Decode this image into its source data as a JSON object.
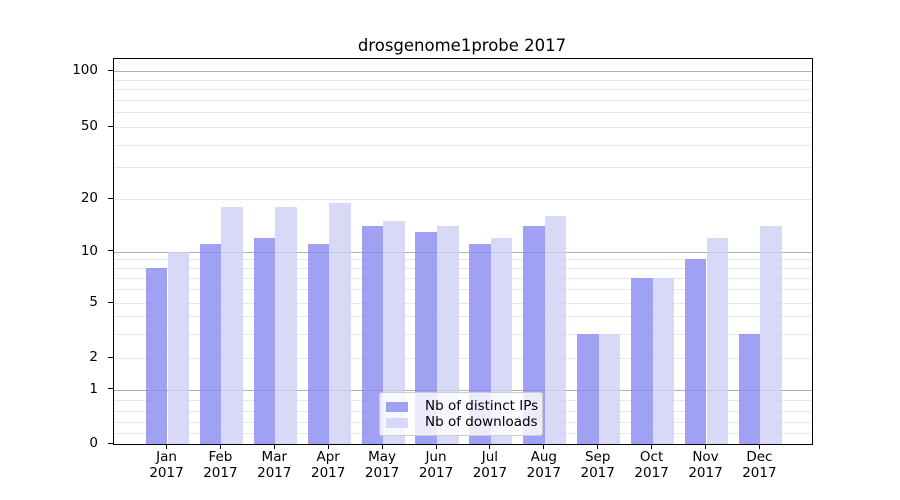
{
  "chart_data": {
    "type": "bar",
    "title": "drosgenome1probe 2017",
    "categories": [
      {
        "month": "Jan",
        "year": "2017"
      },
      {
        "month": "Feb",
        "year": "2017"
      },
      {
        "month": "Mar",
        "year": "2017"
      },
      {
        "month": "Apr",
        "year": "2017"
      },
      {
        "month": "May",
        "year": "2017"
      },
      {
        "month": "Jun",
        "year": "2017"
      },
      {
        "month": "Jul",
        "year": "2017"
      },
      {
        "month": "Aug",
        "year": "2017"
      },
      {
        "month": "Sep",
        "year": "2017"
      },
      {
        "month": "Oct",
        "year": "2017"
      },
      {
        "month": "Nov",
        "year": "2017"
      },
      {
        "month": "Dec",
        "year": "2017"
      }
    ],
    "series": [
      {
        "name": "Nb of distinct IPs",
        "color": "rgba(138,138,240,0.8)",
        "values": [
          8,
          11,
          12,
          11,
          14,
          13,
          11,
          14,
          3,
          7,
          9,
          3
        ]
      },
      {
        "name": "Nb of downloads",
        "color": "rgba(206,206,245,0.8)",
        "values": [
          10,
          18,
          18,
          19,
          15,
          14,
          12,
          16,
          3,
          7,
          12,
          14
        ]
      }
    ],
    "yscale": "symlog",
    "ylim": [
      0,
      116
    ],
    "yticks": [
      {
        "value": 100,
        "label": "100"
      },
      {
        "value": 50,
        "label": "50"
      },
      {
        "value": 20,
        "label": "20"
      },
      {
        "value": 10,
        "label": "10"
      },
      {
        "value": 5,
        "label": "5"
      },
      {
        "value": 2,
        "label": "2"
      },
      {
        "value": 1,
        "label": "1"
      },
      {
        "value": 0,
        "label": "0"
      }
    ],
    "grid": {
      "major_color": "#b0b0b0",
      "minor_color": "#e8e8e8",
      "major_values": [
        1,
        10,
        100
      ],
      "minor_values": [
        0.2,
        0.4,
        0.6,
        0.8,
        2,
        3,
        4,
        5,
        6,
        7,
        8,
        9,
        20,
        30,
        40,
        50,
        60,
        70,
        80,
        90
      ]
    },
    "legend": {
      "position": "lower center"
    },
    "spine_color": "#000000"
  }
}
